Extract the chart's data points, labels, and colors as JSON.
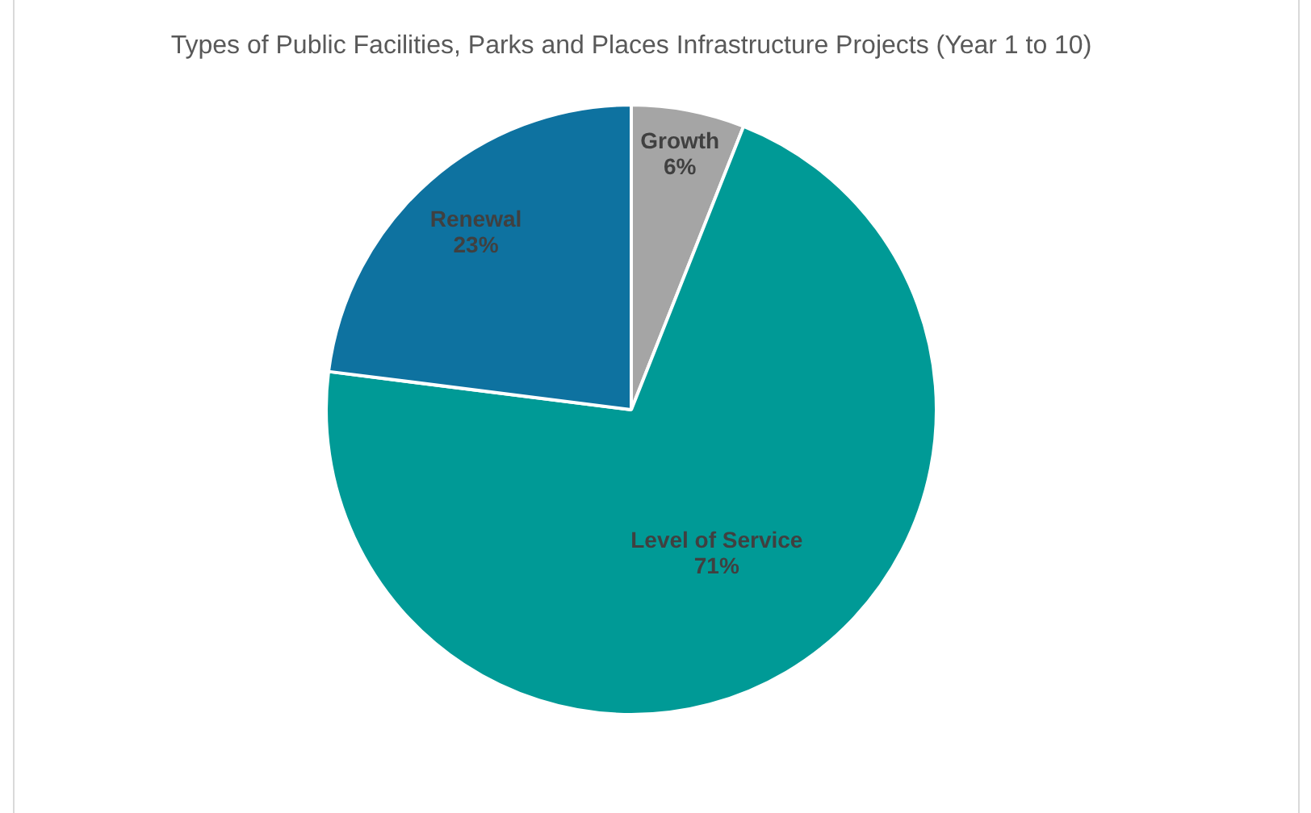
{
  "chart_data": {
    "type": "pie",
    "title": "Types of Public Facilities, Parks and Places Infrastructure Projects (Year 1 to 10)",
    "categories": [
      "Growth",
      "Level of Service",
      "Renewal"
    ],
    "values": [
      6,
      71,
      23
    ],
    "value_labels": [
      "6%",
      "71%",
      "23%"
    ],
    "colors": [
      "#a5a5a5",
      "#009a96",
      "#0e72a0"
    ],
    "legend": false
  }
}
